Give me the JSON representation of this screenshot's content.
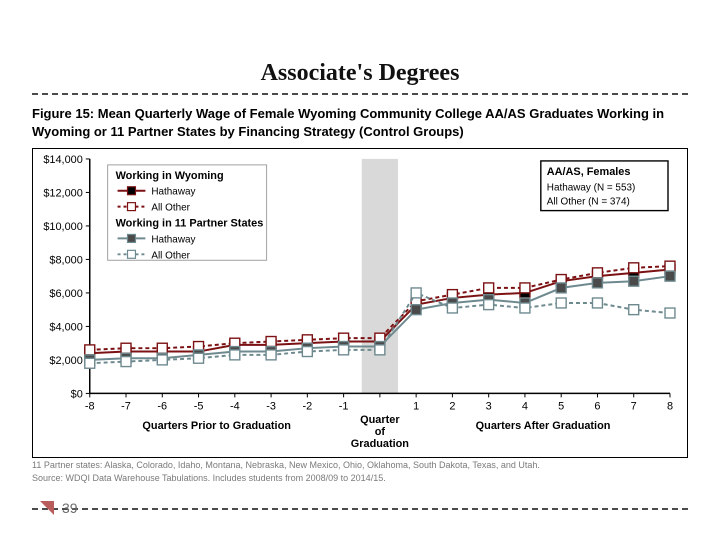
{
  "title": "Associate's Degrees",
  "figure_caption": "Figure 15: Mean Quarterly Wage of Female Wyoming Community College AA/AS Graduates Working in Wyoming or 11 Partner States by Financing Strategy (Control Groups)",
  "footnote_line1": "11 Partner states: Alaska, Colorado, Idaho, Montana, Nebraska, New Mexico, Ohio, Oklahoma, South Dakota, Texas, and Utah.",
  "footnote_line2": "Source: WDQI Data Warehouse Tabulations. Includes students from 2008/09 to 2014/15.",
  "page_number": "39",
  "chart": {
    "type": "line",
    "background_color": "#ffffff",
    "axis_color": "#000000",
    "tick_font_size": 11,
    "label_font_size": 11,
    "label_font_weight": "bold",
    "ylim": [
      0,
      14000
    ],
    "ytick_step": 2000,
    "yticks_labels": [
      "$0",
      "$2,000",
      "$4,000",
      "$6,000",
      "$8,000",
      "$10,000",
      "$12,000",
      "$14,000"
    ],
    "x_categories": [
      "-8",
      "-7",
      "-6",
      "-5",
      "-4",
      "-3",
      "-2",
      "-1",
      "",
      "1",
      "2",
      "3",
      "4",
      "5",
      "6",
      "7",
      "8"
    ],
    "x_left_label": "Quarters Prior to Graduation",
    "x_center_label_top": "Quarter",
    "x_center_label_mid": "of",
    "x_center_label_bot": "Graduation",
    "x_right_label": "Quarters After Graduation",
    "grad_band_color": "#d9d9d9",
    "legend_main": {
      "title1": "Working in Wyoming",
      "title2": "Working in 11 Partner States",
      "items": [
        {
          "label": "Hathaway",
          "color": "#7b1113",
          "marker_fill": "#000000",
          "dash": "solid"
        },
        {
          "label": "All Other",
          "color": "#7b1113",
          "marker_fill": "#ffffff",
          "dash": "dotted"
        },
        {
          "label": "Hathaway",
          "color": "#6e8a8f",
          "marker_fill": "#4a4a4a",
          "dash": "solid"
        },
        {
          "label": "All Other",
          "color": "#6e8a8f",
          "marker_fill": "#ffffff",
          "dash": "dotted"
        }
      ],
      "border_color": "#a0a0a0"
    },
    "legend_right": {
      "title": "AA/AS, Females",
      "line1": "Hathaway (N = 553)",
      "line2": "All Other (N = 374)",
      "border_color": "#000000"
    },
    "series": [
      {
        "name": "Working in Wyoming - Hathaway",
        "color": "#7b1113",
        "marker_stroke": "#7b1113",
        "marker_fill": "#000000",
        "dash": "none",
        "line_width": 2,
        "marker_size": 5,
        "values": [
          2400,
          2500,
          2500,
          2500,
          2900,
          2900,
          3000,
          3100,
          3100,
          5300,
          5700,
          5900,
          6000,
          6700,
          7000,
          7200,
          7400
        ]
      },
      {
        "name": "Working in Wyoming - All Other",
        "color": "#7b1113",
        "marker_stroke": "#7b1113",
        "marker_fill": "#ffffff",
        "dash": "4,3",
        "line_width": 2,
        "marker_size": 5,
        "values": [
          2600,
          2700,
          2700,
          2800,
          3000,
          3100,
          3200,
          3300,
          3300,
          5500,
          5900,
          6300,
          6300,
          6800,
          7200,
          7500,
          7600
        ]
      },
      {
        "name": "Working in 11 Partner States - Hathaway",
        "color": "#6e8a8f",
        "marker_stroke": "#6e8a8f",
        "marker_fill": "#4a4a4a",
        "dash": "none",
        "line_width": 2,
        "marker_size": 5,
        "values": [
          2000,
          2100,
          2100,
          2300,
          2500,
          2500,
          2700,
          2800,
          2800,
          5000,
          5400,
          5600,
          5400,
          6300,
          6600,
          6700,
          7000
        ]
      },
      {
        "name": "Working in 11 Partner States - All Other",
        "color": "#6e8a8f",
        "marker_stroke": "#6e8a8f",
        "marker_fill": "#ffffff",
        "dash": "4,3",
        "line_width": 2,
        "marker_size": 5,
        "values": [
          1800,
          1900,
          2000,
          2100,
          2300,
          2300,
          2500,
          2600,
          2600,
          6000,
          5100,
          5300,
          5100,
          5400,
          5400,
          5000,
          4800
        ]
      }
    ]
  }
}
